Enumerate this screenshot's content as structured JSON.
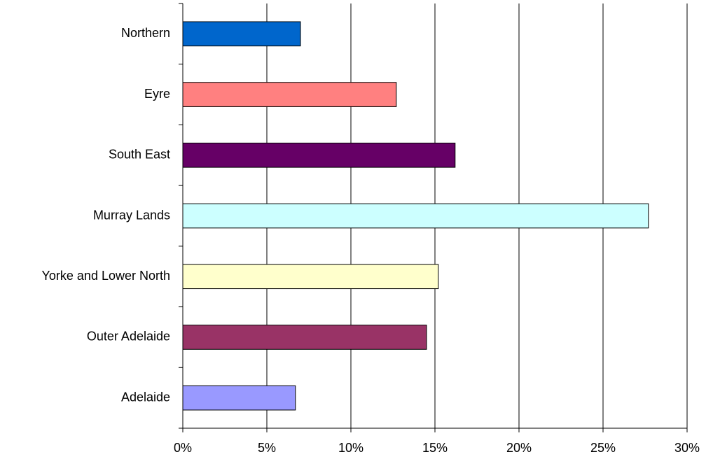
{
  "chart_data": {
    "type": "bar",
    "orientation": "horizontal",
    "categories": [
      "Northern",
      "Eyre",
      "South East",
      "Murray Lands",
      "Yorke and Lower North",
      "Outer Adelaide",
      "Adelaide"
    ],
    "values": [
      7.0,
      12.7,
      16.2,
      27.7,
      15.2,
      14.5,
      6.7
    ],
    "colors": [
      "#0066cc",
      "#ff8080",
      "#660066",
      "#ccffff",
      "#ffffcc",
      "#993366",
      "#9999ff"
    ],
    "xlim": [
      0,
      30
    ],
    "xticks": [
      {
        "value": 0,
        "label": "0%"
      },
      {
        "value": 5,
        "label": "5%"
      },
      {
        "value": 10,
        "label": "10%"
      },
      {
        "value": 15,
        "label": "15%"
      },
      {
        "value": 20,
        "label": "20%"
      },
      {
        "value": 25,
        "label": "25%"
      },
      {
        "value": 30,
        "label": "30%"
      }
    ],
    "grid": true
  }
}
